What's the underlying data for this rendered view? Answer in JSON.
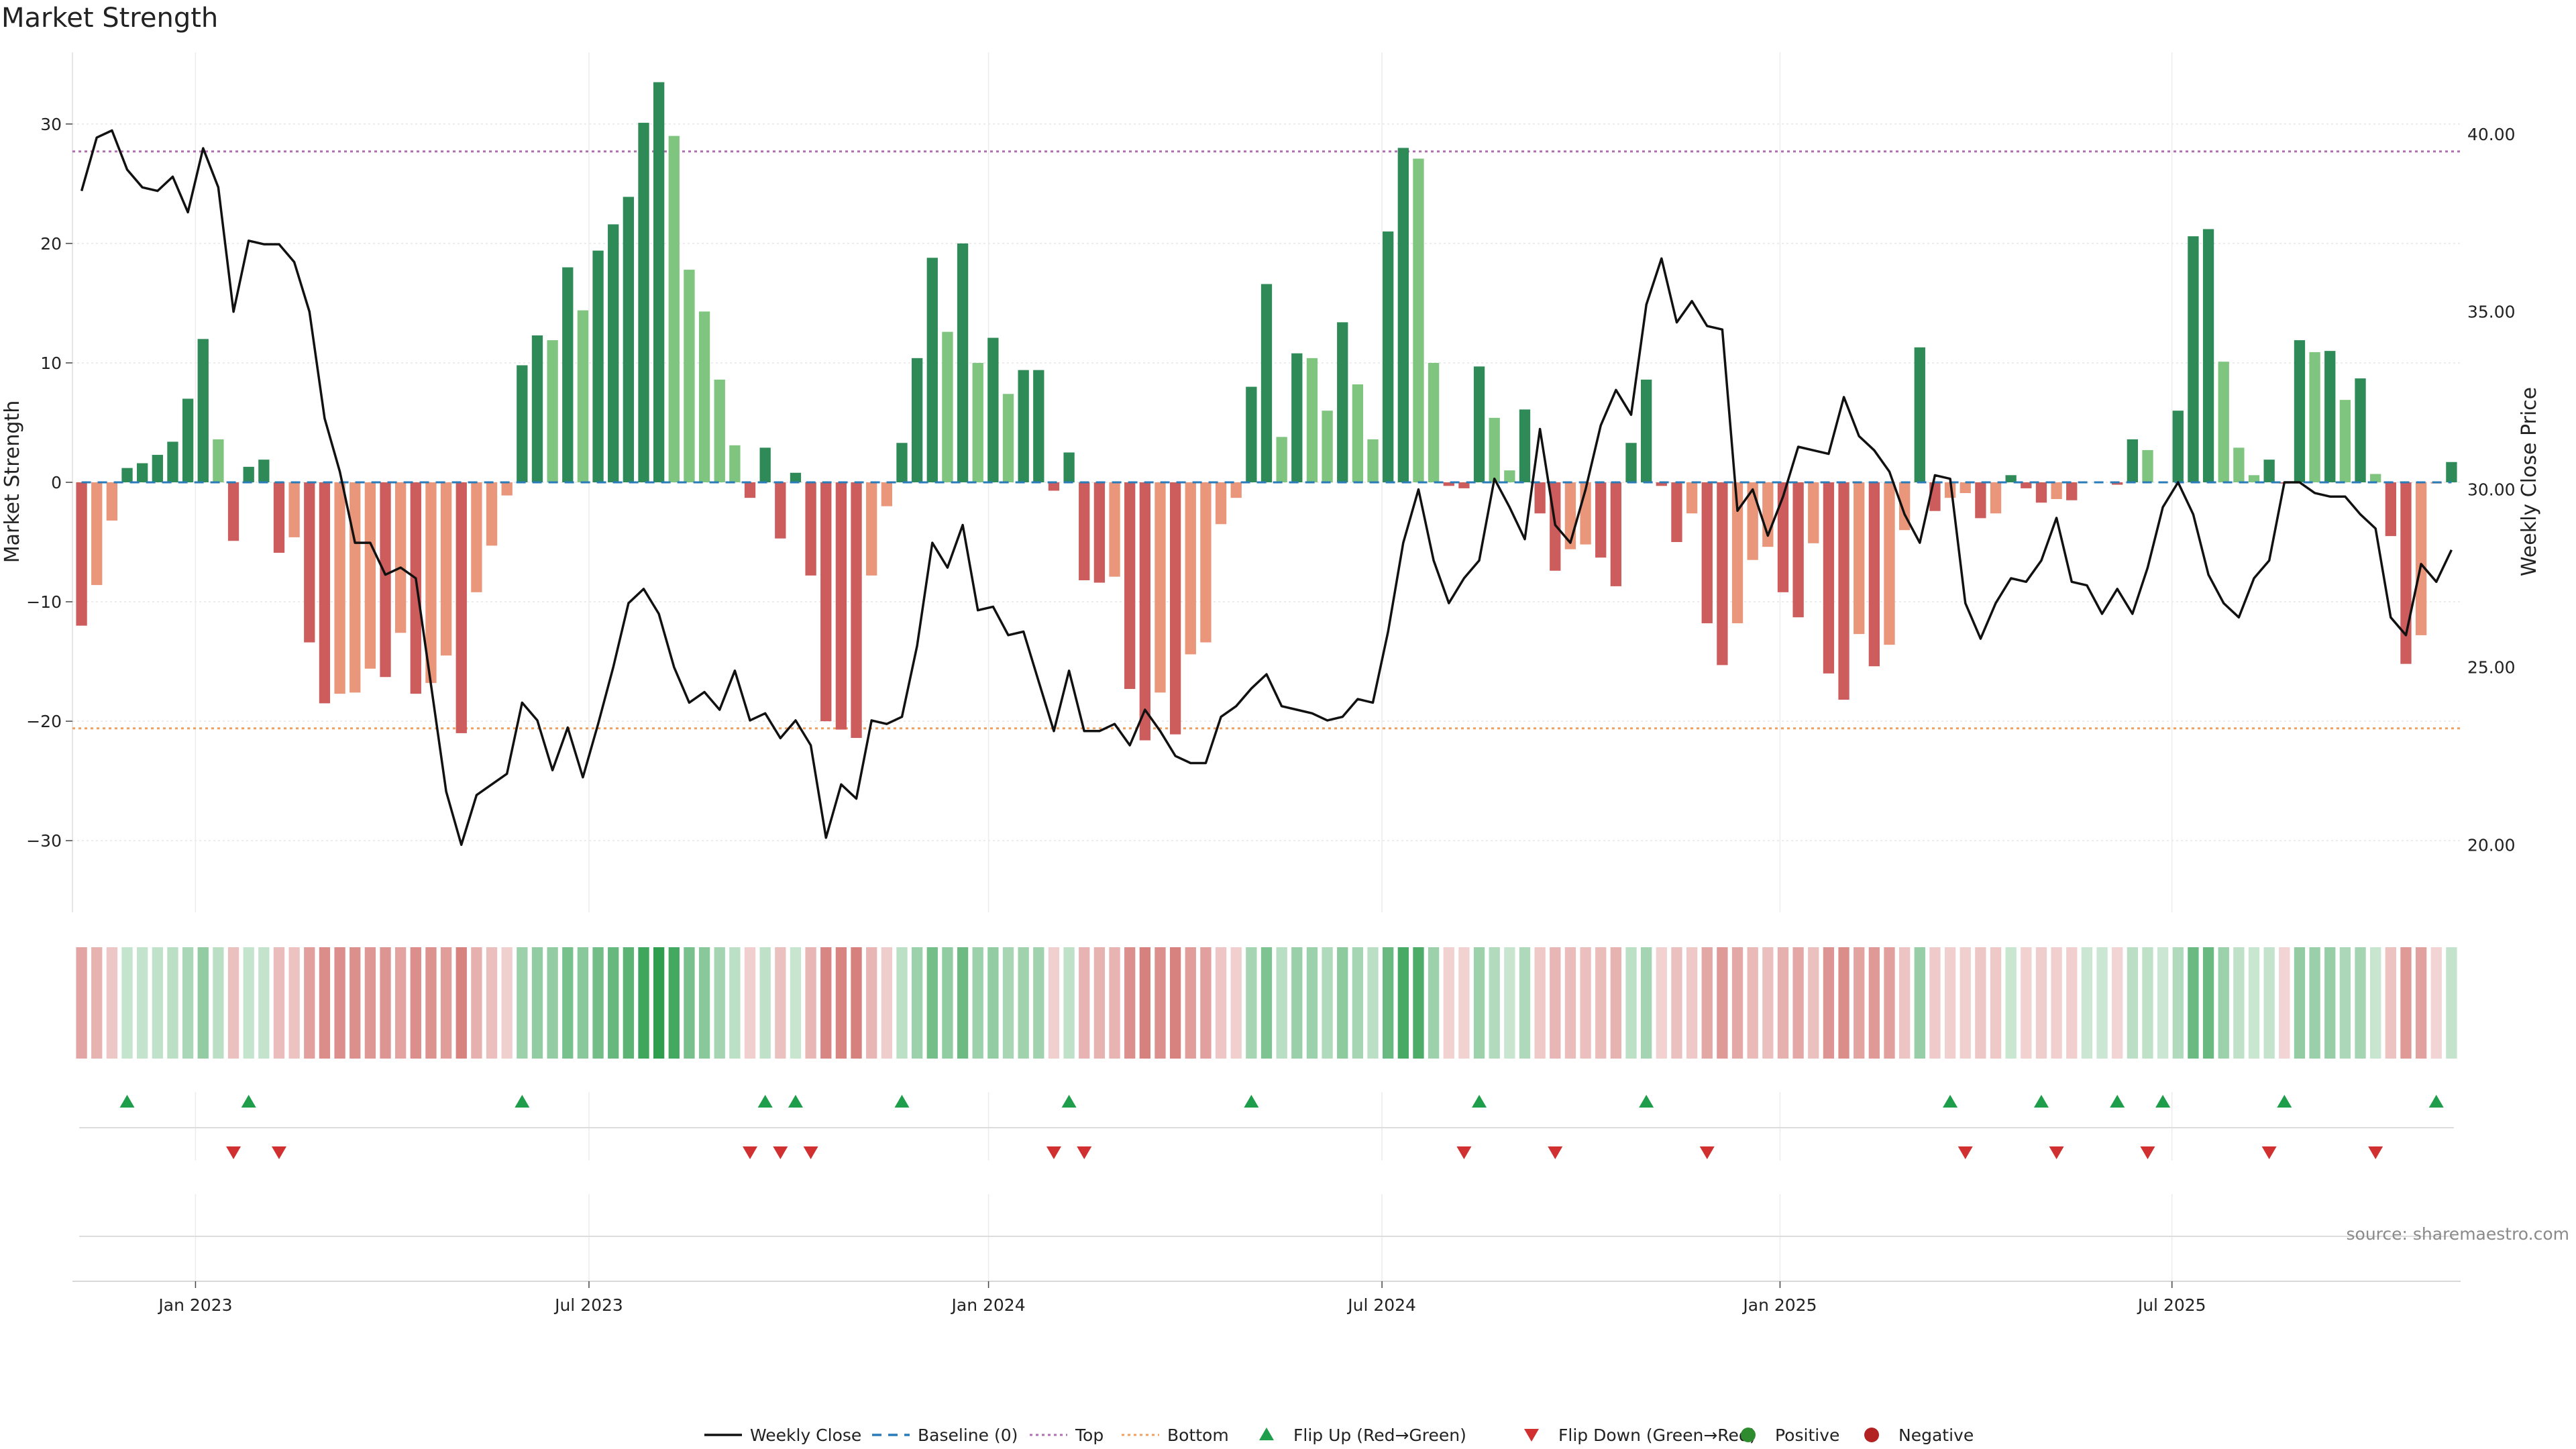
{
  "chart_data": {
    "type": "bar",
    "title": "Market Strength",
    "ylabel": "Market Strength",
    "y2label": "Weekly Close Price",
    "ylim": [
      -36,
      36
    ],
    "y2lim": [
      18.1,
      42.3
    ],
    "yticks": [
      -30,
      -20,
      -10,
      0,
      10,
      20,
      30
    ],
    "y2ticks": [
      20,
      25,
      30,
      35,
      40
    ],
    "y2tick_labels": [
      "20.00",
      "25.00",
      "30.00",
      "35.00",
      "40.00"
    ],
    "x_range": [
      -0.6,
      156.6
    ],
    "x_ticks": [
      {
        "label": "Jan 2023",
        "index": 7.5
      },
      {
        "label": "Jul 2023",
        "index": 33.4
      },
      {
        "label": "Jan 2024",
        "index": 59.7
      },
      {
        "label": "Jul 2024",
        "index": 85.6
      },
      {
        "label": "Jan 2025",
        "index": 111.8
      },
      {
        "label": "Jul 2025",
        "index": 137.6
      }
    ],
    "top_line": 27.7,
    "bottom_line": -20.6,
    "strength": [
      -12,
      -8.6,
      -3.2,
      1.2,
      1.6,
      2.3,
      3.4,
      7,
      12,
      3.6,
      -4.9,
      1.3,
      1.9,
      -5.9,
      -4.6,
      -13.4,
      -18.5,
      -17.7,
      -17.6,
      -15.6,
      -16.3,
      -12.6,
      -17.7,
      -16.8,
      -14.5,
      -21,
      -9.2,
      -5.3,
      -1.1,
      9.8,
      12.3,
      11.9,
      18,
      14.4,
      19.4,
      21.6,
      23.9,
      30.1,
      33.5,
      29,
      17.8,
      14.3,
      8.6,
      3.1,
      -1.3,
      2.9,
      -4.7,
      0.8,
      -7.8,
      -20,
      -20.7,
      -21.4,
      -7.8,
      -2,
      3.3,
      10.4,
      18.8,
      12.6,
      20,
      10,
      12.1,
      7.4,
      9.4,
      9.4,
      -0.7,
      2.5,
      -8.2,
      -8.4,
      -7.9,
      -17.3,
      -21.6,
      -17.6,
      -21.1,
      -14.4,
      -13.4,
      -3.5,
      -1.3,
      8,
      16.6,
      3.8,
      10.8,
      10.4,
      6,
      13.4,
      8.2,
      3.6,
      21,
      28,
      27.1,
      10,
      -0.3,
      -0.5,
      9.7,
      5.4,
      1,
      6.1,
      -2.6,
      -7.4,
      -5.6,
      -5.2,
      -6.3,
      -8.7,
      3.3,
      8.6,
      -0.3,
      -5,
      -2.6,
      -11.8,
      -15.3,
      -11.8,
      -6.5,
      -5.4,
      -9.2,
      -11.3,
      -5.1,
      -16,
      -18.2,
      -12.7,
      -15.4,
      -13.6,
      -4,
      11.3,
      -2.4,
      -1.3,
      -0.9,
      -3,
      -2.6,
      0.6,
      -0.5,
      -1.7,
      -1.4,
      -1.5,
      0,
      0,
      -0.2,
      3.6,
      2.7,
      0,
      6,
      20.6,
      21.2,
      10.1,
      2.9,
      0.6,
      1.9,
      -0.1,
      11.9,
      10.9,
      11,
      6.9,
      8.7,
      0.7,
      -4.5,
      -15.2,
      -12.8,
      -0.1,
      1.7
    ],
    "weekly_close": [
      38.4,
      39.9,
      40.1,
      39.0,
      38.5,
      38.4,
      38.8,
      37.8,
      39.6,
      38.5,
      35.0,
      37.0,
      36.9,
      36.9,
      36.4,
      35.0,
      32.0,
      30.5,
      28.5,
      28.5,
      27.6,
      27.8,
      27.5,
      24.5,
      21.5,
      20.0,
      21.4,
      21.7,
      22.0,
      24.0,
      23.5,
      22.1,
      23.3,
      21.9,
      23.4,
      25.0,
      26.8,
      27.2,
      26.5,
      25.0,
      24.0,
      24.3,
      23.8,
      24.9,
      23.5,
      23.7,
      23.0,
      23.5,
      22.8,
      20.2,
      21.7,
      21.3,
      23.5,
      23.4,
      23.6,
      25.6,
      28.5,
      27.8,
      29.0,
      26.6,
      26.7,
      25.9,
      26.0,
      24.6,
      23.2,
      24.9,
      23.2,
      23.2,
      23.4,
      22.8,
      23.8,
      23.2,
      22.5,
      22.3,
      22.3,
      23.6,
      23.9,
      24.4,
      24.8,
      23.9,
      23.8,
      23.7,
      23.5,
      23.6,
      24.1,
      24.0,
      26.0,
      28.5,
      30.0,
      28.0,
      26.8,
      27.5,
      28.0,
      30.3,
      29.5,
      28.6,
      31.7,
      29.0,
      28.5,
      30.0,
      31.8,
      32.8,
      32.1,
      35.2,
      36.5,
      34.7,
      35.3,
      34.6,
      34.5,
      29.4,
      30.0,
      28.7,
      29.8,
      31.2,
      31.1,
      31.0,
      32.6,
      31.5,
      31.1,
      30.5,
      29.3,
      28.5,
      30.4,
      30.3,
      26.8,
      25.8,
      26.8,
      27.5,
      27.4,
      28.0,
      29.2,
      27.4,
      27.3,
      26.5,
      27.2,
      26.5,
      27.8,
      29.5,
      30.2,
      29.3,
      27.6,
      26.8,
      26.4,
      27.5,
      28.0,
      30.2,
      30.2,
      29.9,
      29.8,
      29.8,
      29.3,
      28.9,
      26.4,
      25.9,
      27.9,
      27.4,
      28.3
    ],
    "flip_up_indices": [
      3,
      11,
      29,
      45,
      47,
      54,
      65,
      77,
      92,
      103,
      123,
      129,
      134,
      137,
      145,
      155
    ],
    "flip_down_indices": [
      10,
      13,
      44,
      46,
      48,
      64,
      66,
      91,
      97,
      107,
      124,
      130,
      136,
      144,
      151
    ],
    "legend": [
      {
        "key": "weekly_close",
        "label": "Weekly Close"
      },
      {
        "key": "baseline",
        "label": "Baseline (0)"
      },
      {
        "key": "top",
        "label": "Top"
      },
      {
        "key": "bottom",
        "label": "Bottom"
      },
      {
        "key": "flip_up",
        "label": "Flip Up (Red→Green)"
      },
      {
        "key": "flip_down",
        "label": "Flip Down (Green→Red)"
      },
      {
        "key": "positive",
        "label": "Positive"
      },
      {
        "key": "negative",
        "label": "Negative"
      }
    ],
    "source": "source: sharemaestro.com",
    "colors": {
      "pos_strong": "#2e8b57",
      "pos_weak": "#7fc47f",
      "neg_strong": "#cd5c5c",
      "neg_weak": "#e9967a",
      "close_line": "#111111",
      "baseline": "#2b7bb9",
      "top_line": "#b070b0",
      "bottom_line": "#f0a060",
      "flip_up": "#1e9e4a",
      "flip_down": "#d03030",
      "positive_dot": "#2e8b2e",
      "negative_dot": "#b22222",
      "heat_pos": "#2f9e4f",
      "heat_neg": "#c8524e"
    }
  }
}
